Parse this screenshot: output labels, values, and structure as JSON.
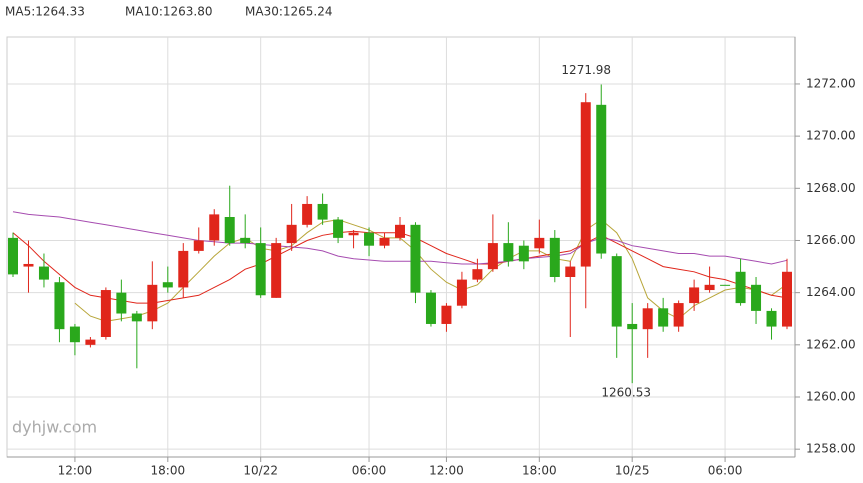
{
  "chart_data": {
    "type": "candlestick",
    "categories": [
      null,
      null,
      null,
      null,
      "12:00",
      null,
      null,
      null,
      null,
      null,
      "18:00",
      null,
      null,
      null,
      null,
      null,
      "10/22",
      null,
      null,
      null,
      null,
      null,
      null,
      "06:00",
      null,
      null,
      null,
      null,
      "12:00",
      null,
      null,
      null,
      null,
      null,
      "18:00",
      null,
      null,
      null,
      null,
      null,
      "10/25",
      null,
      null,
      null,
      null,
      null,
      "06:00",
      null,
      null,
      null,
      null
    ],
    "open": [
      1266.1,
      1265.0,
      1265.0,
      1264.4,
      1262.7,
      1262.0,
      1262.3,
      1264.0,
      1263.2,
      1262.9,
      1264.4,
      1264.2,
      1265.6,
      1266.0,
      1266.9,
      1266.1,
      1265.9,
      1263.8,
      1265.9,
      1266.6,
      1267.4,
      1266.8,
      1266.2,
      1266.3,
      1265.8,
      1266.1,
      1266.6,
      1264.0,
      1262.8,
      1263.5,
      1264.5,
      1264.9,
      1265.9,
      1265.8,
      1265.7,
      1266.1,
      1264.6,
      1265.0,
      1271.2,
      1265.4,
      1262.8,
      1262.6,
      1263.4,
      1262.7,
      1263.6,
      1264.1,
      1264.3,
      1264.8,
      1264.3,
      1263.3,
      1262.7
    ],
    "close": [
      1264.7,
      1265.1,
      1264.5,
      1262.6,
      1262.1,
      1262.2,
      1264.1,
      1263.2,
      1262.9,
      1264.3,
      1264.2,
      1265.6,
      1266.0,
      1267.0,
      1265.9,
      1265.9,
      1263.9,
      1265.9,
      1266.6,
      1267.4,
      1266.8,
      1266.1,
      1266.3,
      1265.8,
      1266.1,
      1266.6,
      1264.0,
      1262.8,
      1263.5,
      1264.5,
      1264.9,
      1265.9,
      1265.2,
      1265.2,
      1266.1,
      1264.6,
      1265.0,
      1271.3,
      1265.5,
      1262.7,
      1262.6,
      1263.4,
      1262.7,
      1263.6,
      1264.2,
      1264.3,
      1264.28,
      1263.6,
      1263.3,
      1262.7,
      1264.8
    ],
    "high": [
      1266.3,
      1266.0,
      1265.5,
      1264.6,
      1262.8,
      1262.3,
      1264.2,
      1264.5,
      1263.3,
      1265.2,
      1265.0,
      1265.9,
      1266.5,
      1267.2,
      1268.1,
      1267.0,
      1266.5,
      1266.1,
      1267.4,
      1267.7,
      1267.8,
      1266.9,
      1266.4,
      1266.5,
      1266.3,
      1266.9,
      1266.7,
      1264.1,
      1263.6,
      1264.8,
      1265.3,
      1267.0,
      1266.7,
      1266.0,
      1266.8,
      1266.4,
      1265.2,
      1271.65,
      1271.98,
      1265.5,
      1263.6,
      1263.6,
      1263.8,
      1263.7,
      1264.5,
      1265.0,
      1264.3,
      1265.3,
      1264.6,
      1263.4,
      1265.3
    ],
    "low": [
      1264.6,
      1264.0,
      1264.2,
      1262.1,
      1261.6,
      1261.9,
      1262.2,
      1262.9,
      1261.1,
      1262.6,
      1264.0,
      1263.8,
      1265.5,
      1265.8,
      1265.8,
      1265.7,
      1263.8,
      1263.8,
      1265.6,
      1266.5,
      1266.6,
      1265.9,
      1265.7,
      1265.4,
      1265.7,
      1266.0,
      1263.6,
      1262.7,
      1262.5,
      1263.4,
      1264.4,
      1264.8,
      1265.0,
      1264.9,
      1265.5,
      1264.4,
      1262.3,
      1263.4,
      1265.3,
      1261.5,
      1260.53,
      1261.5,
      1262.5,
      1262.5,
      1263.3,
      1264.0,
      1264.28,
      1263.5,
      1262.8,
      1262.2,
      1262.6
    ],
    "up_color": "#e0261b",
    "down_color": "#2aa81c",
    "max_label": "1271.98",
    "min_label": "1260.53",
    "series": [
      {
        "name": "MA5:1264.33",
        "color": "#b8a63a",
        "values": [
          null,
          null,
          null,
          null,
          1263.6,
          1263.1,
          1262.9,
          1263.0,
          1263.1,
          1263.3,
          1263.6,
          1264.2,
          1264.8,
          1265.4,
          1265.9,
          1266.1,
          1265.7,
          1265.6,
          1265.8,
          1266.3,
          1266.7,
          1266.8,
          1266.6,
          1266.4,
          1266.1,
          1266.1,
          1265.6,
          1264.9,
          1264.4,
          1264.1,
          1264.3,
          1264.9,
          1265.3,
          1265.6,
          1265.6,
          1265.3,
          1265.2,
          1266.4,
          1266.8,
          1266.3,
          1265.3,
          1263.8,
          1263.3,
          1263.0,
          1263.5,
          1263.8,
          1264.1,
          1264.2,
          1264.1,
          1263.9,
          1264.33
        ]
      },
      {
        "name": "MA10:1263.80",
        "color": "#e0261b",
        "values": [
          1266.3,
          1265.8,
          1265.2,
          1264.7,
          1264.2,
          1263.9,
          1263.8,
          1263.7,
          1263.6,
          1263.6,
          1263.7,
          1263.8,
          1263.9,
          1264.2,
          1264.5,
          1264.9,
          1265.1,
          1265.4,
          1265.7,
          1266.0,
          1266.2,
          1266.3,
          1266.35,
          1266.3,
          1266.3,
          1266.3,
          1266.1,
          1265.8,
          1265.5,
          1265.3,
          1265.1,
          1265.1,
          1265.2,
          1265.3,
          1265.4,
          1265.5,
          1265.6,
          1265.9,
          1266.2,
          1265.9,
          1265.6,
          1265.3,
          1265.0,
          1264.9,
          1264.8,
          1264.6,
          1264.5,
          1264.3,
          1264.1,
          1263.9,
          1263.8
        ]
      },
      {
        "name": "MA30:1265.24",
        "color": "#a64cb0",
        "values": [
          1267.1,
          1267.0,
          1266.95,
          1266.9,
          1266.8,
          1266.7,
          1266.6,
          1266.5,
          1266.4,
          1266.3,
          1266.2,
          1266.1,
          1266.0,
          1265.95,
          1265.9,
          1265.9,
          1265.85,
          1265.8,
          1265.75,
          1265.7,
          1265.6,
          1265.4,
          1265.3,
          1265.25,
          1265.2,
          1265.2,
          1265.2,
          1265.2,
          1265.15,
          1265.1,
          1265.1,
          1265.15,
          1265.2,
          1265.3,
          1265.35,
          1265.4,
          1265.5,
          1265.9,
          1266.1,
          1266.0,
          1265.8,
          1265.7,
          1265.6,
          1265.5,
          1265.5,
          1265.4,
          1265.4,
          1265.3,
          1265.2,
          1265.1,
          1265.24
        ]
      }
    ],
    "ylim": [
      1257.7,
      1273.8
    ],
    "yticks": [
      {
        "value": 1258,
        "label": "1258.00"
      },
      {
        "value": 1260,
        "label": "1260.00"
      },
      {
        "value": 1262,
        "label": "1262.00"
      },
      {
        "value": 1264,
        "label": "1264.00"
      },
      {
        "value": 1266,
        "label": "1266.00"
      },
      {
        "value": 1268,
        "label": "1268.00"
      },
      {
        "value": 1270,
        "label": "1270.00"
      },
      {
        "value": 1272,
        "label": "1272.00"
      }
    ],
    "grid": true,
    "watermark": "dyhjw.com"
  }
}
